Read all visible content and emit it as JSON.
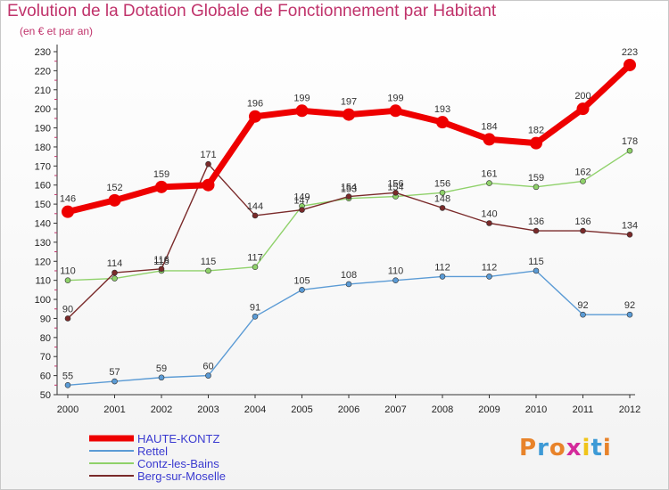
{
  "title": "Evolution de la Dotation Globale de Fonctionnement par Habitant",
  "subtitle": "(en € et par an)",
  "logo": {
    "text": "Proxiti",
    "colors": [
      "#e8832a",
      "#3d9ad6",
      "#e8832a",
      "#d42a9b",
      "#f0c419",
      "#3d9ad6",
      "#e8832a"
    ]
  },
  "chart_data": {
    "type": "line",
    "x": [
      "2000",
      "2001",
      "2002",
      "2003",
      "2004",
      "2005",
      "2006",
      "2007",
      "2008",
      "2009",
      "2010",
      "2011",
      "2012"
    ],
    "ylim": [
      50,
      230
    ],
    "yticks": [
      50,
      60,
      70,
      80,
      90,
      100,
      110,
      120,
      130,
      140,
      150,
      160,
      170,
      180,
      190,
      200,
      210,
      220,
      230
    ],
    "grid": false,
    "legend_position": "bottom-left",
    "series": [
      {
        "name": "HAUTE-KONTZ",
        "color": "#ee0000",
        "values": [
          146,
          152,
          159,
          160,
          196,
          199,
          197,
          199,
          193,
          184,
          182,
          200,
          223
        ],
        "labels": [
          "146",
          "152",
          "159",
          "",
          "196",
          "199",
          "197",
          "199",
          "193",
          "184",
          "182",
          "200",
          "223"
        ]
      },
      {
        "name": "Rettel",
        "color": "#5b9bd5",
        "values": [
          55,
          57,
          59,
          60,
          91,
          105,
          108,
          110,
          112,
          112,
          115,
          92,
          92
        ],
        "labels": [
          "55",
          "57",
          "59",
          "60",
          "91",
          "105",
          "108",
          "110",
          "112",
          "112",
          "115",
          "92",
          "92"
        ]
      },
      {
        "name": "Contz-les-Bains",
        "color": "#8fd16a",
        "values": [
          110,
          111,
          115,
          115,
          117,
          149,
          153,
          154,
          156,
          161,
          159,
          162,
          178
        ],
        "labels": [
          "110",
          "",
          "115",
          "115",
          "117",
          "149",
          "153",
          "154",
          "156",
          "161",
          "159",
          "162",
          "178"
        ]
      },
      {
        "name": "Berg-sur-Moselle",
        "color": "#7a2a2a",
        "values": [
          90,
          114,
          116,
          171,
          144,
          147,
          154,
          156,
          148,
          140,
          136,
          136,
          134
        ],
        "labels": [
          "90",
          "114",
          "116",
          "171",
          "144",
          "147",
          "154",
          "156",
          "148",
          "140",
          "136",
          "136",
          "134"
        ]
      }
    ]
  }
}
